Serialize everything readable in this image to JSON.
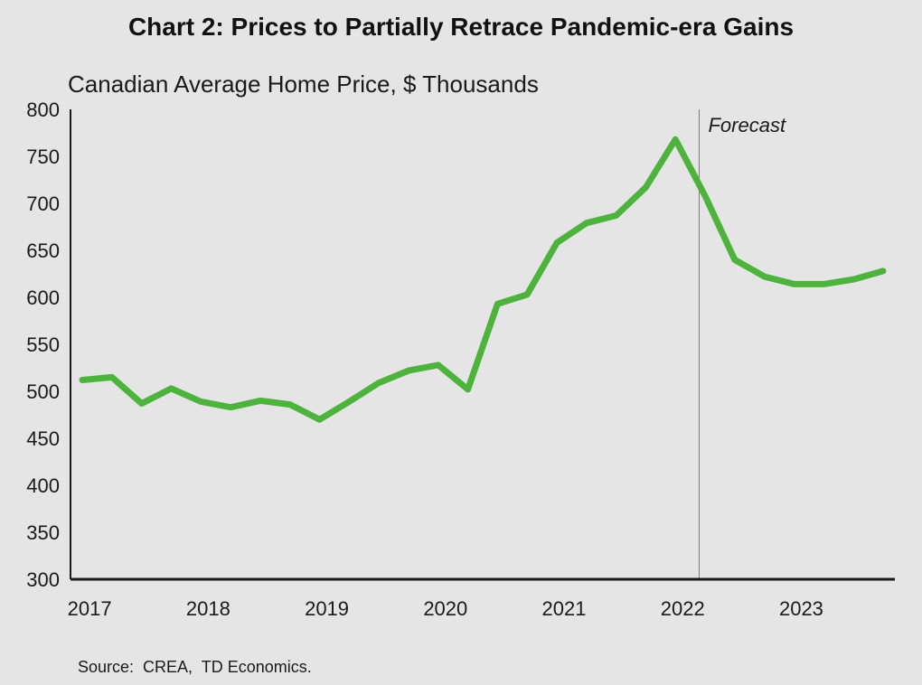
{
  "chart_data": {
    "type": "line",
    "title": "Chart 2: Prices to Partially Retrace Pandemic-era Gains",
    "subtitle": "Canadian Average Home Price, $ Thousands",
    "source": "Source:  CREA,  TD Economics.",
    "x": [
      2017.0,
      2017.25,
      2017.5,
      2017.75,
      2018.0,
      2018.25,
      2018.5,
      2018.75,
      2019.0,
      2019.25,
      2019.5,
      2019.75,
      2020.0,
      2020.25,
      2020.5,
      2020.75,
      2021.0,
      2021.25,
      2021.5,
      2021.75,
      2022.0,
      2022.25,
      2022.5,
      2022.75,
      2023.0,
      2023.25,
      2023.5,
      2023.75
    ],
    "x_tick_labels": [
      "2017",
      "2018",
      "2019",
      "2020",
      "2021",
      "2022",
      "2023"
    ],
    "y_ticks": [
      300,
      350,
      400,
      450,
      500,
      550,
      600,
      650,
      700,
      750,
      800
    ],
    "ylim": [
      300,
      800
    ],
    "xlim": [
      2016.9,
      2023.85
    ],
    "series": [
      {
        "values": [
          512,
          515,
          487,
          503,
          489,
          483,
          490,
          486,
          470,
          489,
          509,
          522,
          528,
          502,
          593,
          603,
          658,
          679,
          687,
          717,
          768,
          708,
          640,
          622,
          614,
          614,
          619,
          628
        ]
      }
    ],
    "forecast_line_x": 2022.2,
    "annotation": "Forecast",
    "grid": false,
    "legend": "none",
    "colors": {
      "line": "#4db33d",
      "background": "#e5e5e5",
      "axis": "#1a1a1a",
      "forecast_divider": "#7a7a7a"
    }
  }
}
